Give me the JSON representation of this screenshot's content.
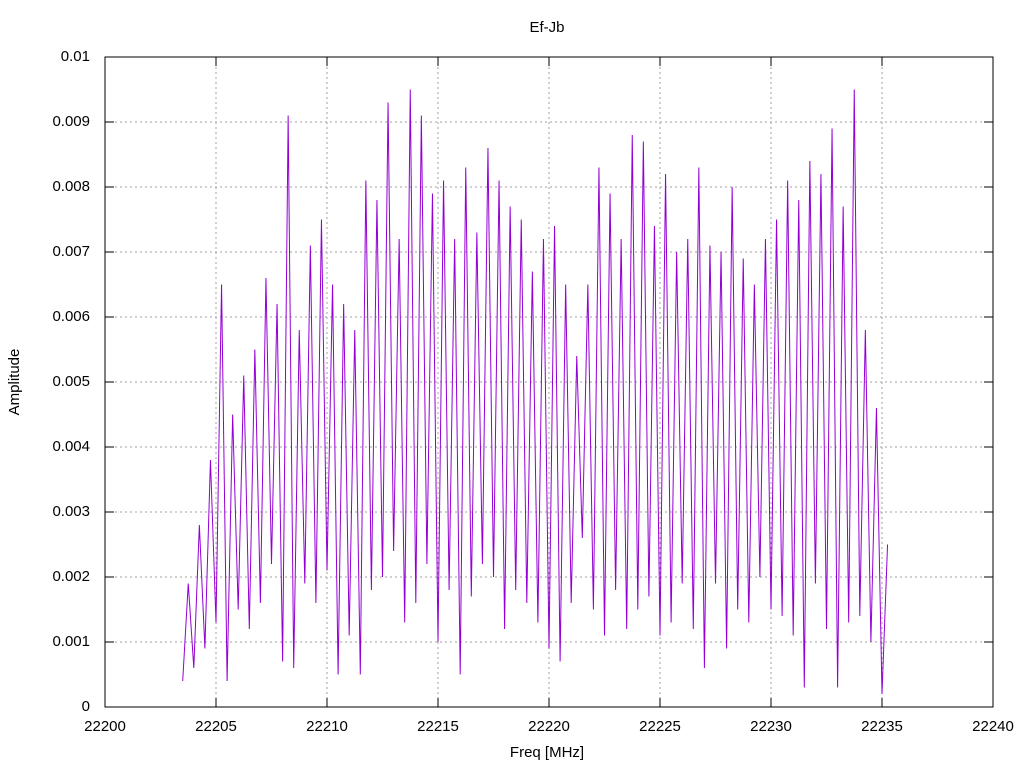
{
  "chart_data": {
    "type": "line",
    "title": "Ef-Jb",
    "xlabel": "Freq [MHz]",
    "ylabel": "Amplitude",
    "xlim": [
      22200,
      22240
    ],
    "xticks": [
      22200,
      22205,
      22210,
      22215,
      22220,
      22225,
      22230,
      22235,
      22240
    ],
    "ylim": [
      0,
      0.01
    ],
    "yticks": [
      0,
      0.001,
      0.002,
      0.003,
      0.004,
      0.005,
      0.006,
      0.007,
      0.008,
      0.009,
      0.01
    ],
    "grid": true,
    "series": [
      {
        "color": "#9400d3",
        "x": [
          22203.5,
          22203.75,
          22204,
          22204.25,
          22204.5,
          22204.75,
          22205,
          22205.25,
          22205.5,
          22205.75,
          22206,
          22206.25,
          22206.5,
          22206.75,
          22207,
          22207.25,
          22207.5,
          22207.75,
          22208,
          22208.25,
          22208.5,
          22208.75,
          22209,
          22209.25,
          22209.5,
          22209.75,
          22210,
          22210.25,
          22210.5,
          22210.75,
          22211,
          22211.25,
          22211.5,
          22211.75,
          22212,
          22212.25,
          22212.5,
          22212.75,
          22213,
          22213.25,
          22213.5,
          22213.75,
          22214,
          22214.25,
          22214.5,
          22214.75,
          22215,
          22215.25,
          22215.5,
          22215.75,
          22216,
          22216.25,
          22216.5,
          22216.75,
          22217,
          22217.25,
          22217.5,
          22217.75,
          22218,
          22218.25,
          22218.5,
          22218.75,
          22219,
          22219.25,
          22219.5,
          22219.75,
          22220,
          22220.25,
          22220.5,
          22220.75,
          22221,
          22221.25,
          22221.5,
          22221.75,
          22222,
          22222.25,
          22222.5,
          22222.75,
          22223,
          22223.25,
          22223.5,
          22223.75,
          22224,
          22224.25,
          22224.5,
          22224.75,
          22225,
          22225.25,
          22225.5,
          22225.75,
          22226,
          22226.25,
          22226.5,
          22226.75,
          22227,
          22227.25,
          22227.5,
          22227.75,
          22228,
          22228.25,
          22228.5,
          22228.75,
          22229,
          22229.25,
          22229.5,
          22229.75,
          22230,
          22230.25,
          22230.5,
          22230.75,
          22231,
          22231.25,
          22231.5,
          22231.75,
          22232,
          22232.25,
          22232.5,
          22232.75,
          22233,
          22233.25,
          22233.5,
          22233.75,
          22234,
          22234.25,
          22234.5,
          22234.75,
          22235,
          22235.25
        ],
        "values": [
          0.0004,
          0.0019,
          0.0006,
          0.0028,
          0.0009,
          0.0038,
          0.0013,
          0.0065,
          0.0004,
          0.0045,
          0.0015,
          0.0051,
          0.0012,
          0.0055,
          0.0016,
          0.0066,
          0.0022,
          0.0062,
          0.0007,
          0.0091,
          0.0006,
          0.0058,
          0.0019,
          0.0071,
          0.0016,
          0.0075,
          0.0021,
          0.0065,
          0.0005,
          0.0062,
          0.0011,
          0.0058,
          0.0005,
          0.0081,
          0.0018,
          0.0078,
          0.002,
          0.0093,
          0.0024,
          0.0072,
          0.0013,
          0.0095,
          0.0016,
          0.0091,
          0.0022,
          0.0079,
          0.001,
          0.0081,
          0.0018,
          0.0072,
          0.0005,
          0.0083,
          0.0017,
          0.0073,
          0.0022,
          0.0086,
          0.002,
          0.0081,
          0.0012,
          0.0077,
          0.0018,
          0.0075,
          0.0016,
          0.0067,
          0.0013,
          0.0072,
          0.0009,
          0.0074,
          0.0007,
          0.0065,
          0.0016,
          0.0054,
          0.0026,
          0.0065,
          0.0015,
          0.0083,
          0.0011,
          0.0079,
          0.0018,
          0.0072,
          0.0012,
          0.0088,
          0.0015,
          0.0087,
          0.0017,
          0.0074,
          0.0011,
          0.0082,
          0.0013,
          0.007,
          0.0019,
          0.0072,
          0.0012,
          0.0083,
          0.0006,
          0.0071,
          0.0019,
          0.007,
          0.0009,
          0.008,
          0.0015,
          0.0069,
          0.0013,
          0.0065,
          0.002,
          0.0072,
          0.0015,
          0.0075,
          0.0014,
          0.0081,
          0.0011,
          0.0078,
          0.0003,
          0.0084,
          0.0019,
          0.0082,
          0.0012,
          0.0089,
          0.0003,
          0.0077,
          0.0013,
          0.0095,
          0.0014,
          0.0058,
          0.001,
          0.0046,
          0.0002,
          0.0025
        ]
      }
    ]
  }
}
